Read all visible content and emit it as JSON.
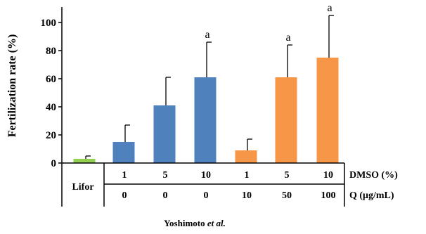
{
  "chart_data": {
    "type": "bar",
    "ylabel": "Fertilization rate (%)",
    "ylim": [
      0,
      110
    ],
    "yticks": [
      0,
      20,
      40,
      60,
      80,
      100
    ],
    "categories": [
      "Lifor",
      "1 / 0",
      "5 / 0",
      "10 / 0",
      "1 / 10",
      "5 / 50",
      "10 / 100"
    ],
    "values": [
      3,
      15,
      41,
      61,
      9,
      61,
      75
    ],
    "errors": [
      2,
      12,
      20,
      25,
      8,
      23,
      30
    ],
    "annotations": [
      "",
      "",
      "",
      "a",
      "",
      "a",
      "a"
    ],
    "colors": [
      "#92d050",
      "#4f81bd",
      "#4f81bd",
      "#4f81bd",
      "#f79646",
      "#f79646",
      "#f79646"
    ],
    "grid": false
  },
  "table": {
    "group_label": "Lifor",
    "rows": [
      {
        "name": "DMSO (%)",
        "cells": [
          "1",
          "5",
          "10",
          "1",
          "5",
          "10"
        ]
      },
      {
        "name": "Q (μg/mL)",
        "cells": [
          "0",
          "0",
          "0",
          "10",
          "50",
          "100"
        ]
      }
    ]
  },
  "credit": {
    "text": "Yoshimoto ",
    "italic": "et al."
  }
}
